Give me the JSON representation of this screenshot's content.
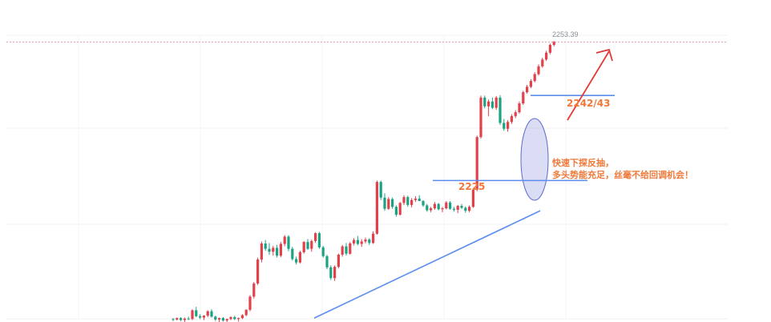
{
  "chart_data": {
    "type": "candlestick",
    "up_color": "#e0414b",
    "down_color": "#1aa383",
    "trend_color": "#5b8def",
    "annotation_color": "#f0793a",
    "arrow_color": "#e53935",
    "ylim": [
      2196,
      2262
    ],
    "grid": true,
    "price_line": {
      "value": 2253.39,
      "label": "2253.39"
    },
    "levels": [
      {
        "value": 2242.43,
        "label": "2242/43"
      },
      {
        "value": 2225,
        "label": "2225"
      }
    ],
    "trendline": {
      "from": [
        0,
        2196.8
      ],
      "to": [
        92,
        2218.8
      ]
    },
    "annotation_lines": [
      "快速下探反抽，",
      "多头势能充足，丝毫不给回调机会！"
    ],
    "candles": [
      [
        2196.6,
        2196.8,
        2196.2,
        2196.5
      ],
      [
        2196.5,
        2196.9,
        2196.3,
        2196.8
      ],
      [
        2196.8,
        2197.0,
        2196.2,
        2196.4
      ],
      [
        2196.4,
        2196.9,
        2196.0,
        2196.7
      ],
      [
        2196.7,
        2197.1,
        2196.4,
        2196.6
      ],
      [
        2196.6,
        2198.6,
        2196.4,
        2198.4
      ],
      [
        2198.4,
        2199.1,
        2197.0,
        2197.2
      ],
      [
        2197.2,
        2197.6,
        2196.6,
        2196.9
      ],
      [
        2196.9,
        2197.4,
        2196.4,
        2197.3
      ],
      [
        2197.3,
        2198.4,
        2197.0,
        2198.2
      ],
      [
        2198.2,
        2198.6,
        2196.9,
        2197.1
      ],
      [
        2197.1,
        2197.3,
        2196.2,
        2196.5
      ],
      [
        2196.5,
        2196.9,
        2196.0,
        2196.8
      ],
      [
        2196.8,
        2197.0,
        2196.1,
        2196.3
      ],
      [
        2196.3,
        2196.7,
        2196.0,
        2196.6
      ],
      [
        2196.6,
        2197.2,
        2196.4,
        2197.0
      ],
      [
        2197.0,
        2197.3,
        2196.4,
        2196.6
      ],
      [
        2196.6,
        2196.9,
        2196.1,
        2196.8
      ],
      [
        2196.8,
        2197.6,
        2196.6,
        2197.4
      ],
      [
        2197.4,
        2198.6,
        2197.2,
        2198.5
      ],
      [
        2198.5,
        2201.5,
        2198.2,
        2201.2
      ],
      [
        2201.2,
        2204.2,
        2200.8,
        2203.9
      ],
      [
        2203.9,
        2209.2,
        2203.6,
        2208.8
      ],
      [
        2208.8,
        2212.5,
        2208.2,
        2212.1
      ],
      [
        2212.1,
        2212.8,
        2210.6,
        2211.0
      ],
      [
        2211.0,
        2212.2,
        2209.8,
        2210.4
      ],
      [
        2210.4,
        2211.6,
        2209.6,
        2211.2
      ],
      [
        2211.2,
        2211.8,
        2209.2,
        2209.6
      ],
      [
        2209.6,
        2212.4,
        2209.3,
        2212.0
      ],
      [
        2212.0,
        2213.8,
        2211.5,
        2213.5
      ],
      [
        2213.5,
        2213.8,
        2210.5,
        2211.0
      ],
      [
        2211.0,
        2211.4,
        2208.6,
        2208.9
      ],
      [
        2208.9,
        2209.4,
        2207.8,
        2208.2
      ],
      [
        2208.2,
        2210.6,
        2208.0,
        2210.3
      ],
      [
        2210.3,
        2212.6,
        2210.0,
        2212.4
      ],
      [
        2212.4,
        2213.0,
        2210.8,
        2211.0
      ],
      [
        2211.0,
        2212.9,
        2210.4,
        2212.6
      ],
      [
        2212.6,
        2214.4,
        2212.2,
        2214.2
      ],
      [
        2214.2,
        2214.5,
        2211.0,
        2211.3
      ],
      [
        2211.3,
        2211.6,
        2209.2,
        2209.5
      ],
      [
        2209.5,
        2209.8,
        2206.8,
        2207.2
      ],
      [
        2207.2,
        2207.6,
        2204.6,
        2205.0
      ],
      [
        2205.0,
        2207.6,
        2204.4,
        2207.3
      ],
      [
        2207.3,
        2210.0,
        2207.0,
        2209.8
      ],
      [
        2209.8,
        2211.8,
        2209.4,
        2211.5
      ],
      [
        2211.5,
        2212.2,
        2209.6,
        2210.0
      ],
      [
        2210.0,
        2212.4,
        2209.8,
        2212.1
      ],
      [
        2212.1,
        2213.2,
        2211.7,
        2212.8
      ],
      [
        2212.8,
        2213.6,
        2211.7,
        2212.0
      ],
      [
        2212.0,
        2213.0,
        2211.4,
        2212.5
      ],
      [
        2212.5,
        2213.3,
        2212.1,
        2212.9
      ],
      [
        2212.9,
        2213.2,
        2211.8,
        2212.2
      ],
      [
        2212.2,
        2214.6,
        2212.0,
        2214.1
      ],
      [
        2214.1,
        2225.0,
        2213.9,
        2224.7
      ],
      [
        2224.7,
        2225.0,
        2221.0,
        2221.5
      ],
      [
        2221.5,
        2222.4,
        2218.8,
        2219.2
      ],
      [
        2219.2,
        2221.6,
        2219.0,
        2221.2
      ],
      [
        2221.2,
        2221.5,
        2219.2,
        2219.6
      ],
      [
        2219.6,
        2219.9,
        2217.6,
        2218.0
      ],
      [
        2218.0,
        2220.6,
        2217.8,
        2220.4
      ],
      [
        2220.4,
        2222.0,
        2220.0,
        2221.6
      ],
      [
        2221.6,
        2221.9,
        2219.6,
        2220.0
      ],
      [
        2220.0,
        2221.4,
        2219.5,
        2221.0
      ],
      [
        2221.0,
        2221.8,
        2220.6,
        2221.3
      ],
      [
        2221.3,
        2222.0,
        2220.8,
        2220.8
      ],
      [
        2220.8,
        2221.0,
        2219.6,
        2219.9
      ],
      [
        2219.9,
        2220.2,
        2218.6,
        2218.9
      ],
      [
        2218.9,
        2219.6,
        2218.5,
        2219.3
      ],
      [
        2219.3,
        2220.6,
        2219.0,
        2220.2
      ],
      [
        2220.2,
        2220.4,
        2218.9,
        2219.1
      ],
      [
        2219.1,
        2219.6,
        2218.5,
        2219.3
      ],
      [
        2219.3,
        2220.8,
        2219.1,
        2220.5
      ],
      [
        2220.5,
        2220.8,
        2219.0,
        2219.2
      ],
      [
        2219.2,
        2219.6,
        2218.6,
        2219.0
      ],
      [
        2219.0,
        2220.0,
        2218.3,
        2219.8
      ],
      [
        2219.8,
        2220.2,
        2219.2,
        2219.4
      ],
      [
        2219.4,
        2219.7,
        2218.4,
        2218.8
      ],
      [
        2218.8,
        2219.9,
        2218.5,
        2219.6
      ],
      [
        2219.6,
        2223.4,
        2219.4,
        2223.1
      ],
      [
        2223.1,
        2234.2,
        2222.8,
        2233.9
      ],
      [
        2233.9,
        2242.4,
        2233.6,
        2242.0
      ],
      [
        2242.0,
        2242.4,
        2239.8,
        2240.2
      ],
      [
        2240.2,
        2241.6,
        2238.2,
        2241.2
      ],
      [
        2241.2,
        2242.0,
        2239.6,
        2239.9
      ],
      [
        2239.9,
        2242.3,
        2239.5,
        2242.0
      ],
      [
        2242.0,
        2242.5,
        2236.4,
        2236.8
      ],
      [
        2236.8,
        2237.6,
        2235.2,
        2235.6
      ],
      [
        2235.6,
        2237.4,
        2235.0,
        2237.0
      ],
      [
        2237.0,
        2238.6,
        2236.6,
        2238.2
      ],
      [
        2238.2,
        2239.4,
        2237.8,
        2239.0
      ],
      [
        2239.0,
        2241.2,
        2238.7,
        2240.8
      ],
      [
        2240.8,
        2243.4,
        2240.5,
        2243.1
      ],
      [
        2243.1,
        2244.6,
        2242.8,
        2244.2
      ],
      [
        2244.2,
        2245.8,
        2243.9,
        2245.4
      ],
      [
        2245.4,
        2247.2,
        2245.1,
        2246.8
      ],
      [
        2246.8,
        2248.8,
        2246.5,
        2248.4
      ],
      [
        2248.4,
        2250.2,
        2248.1,
        2249.8
      ],
      [
        2249.8,
        2251.6,
        2249.5,
        2251.2
      ],
      [
        2251.2,
        2253.1,
        2250.9,
        2252.8
      ],
      [
        2252.8,
        2253.6,
        2252.5,
        2253.4
      ]
    ]
  }
}
